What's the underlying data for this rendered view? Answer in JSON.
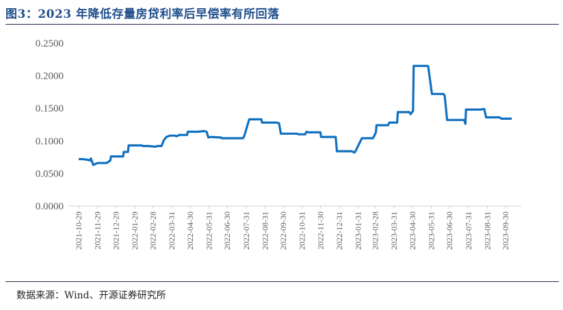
{
  "figure": {
    "title": "图3：2023 年降低存量房贷利率后早偿率有所回落",
    "source": "数据来源：Wind、开源证券研究所"
  },
  "chart_data": {
    "type": "line",
    "title": "",
    "xlabel": "",
    "ylabel": "",
    "ylim": [
      0,
      0.25
    ],
    "yticks": [
      "0.0000",
      "0.0500",
      "0.1000",
      "0.1500",
      "0.2000",
      "0.2500"
    ],
    "grid": false,
    "legend": "none",
    "line_color": "#1070c0",
    "xticks": [
      "2021-10-29",
      "2021-11-29",
      "2021-12-29",
      "2022-01-29",
      "2022-02-28",
      "2022-03-31",
      "2022-04-30",
      "2022-05-31",
      "2022-06-30",
      "2022-07-31",
      "2022-08-31",
      "2022-09-30",
      "2022-10-31",
      "2022-11-30",
      "2022-12-31",
      "2023-01-31",
      "2023-02-28",
      "2023-03-31",
      "2023-04-30",
      "2023-05-31",
      "2023-06-30",
      "2023-07-31",
      "2023-08-31",
      "2023-09-30"
    ],
    "series": [
      {
        "x": [
          "2021-10-29",
          "2021-11-05",
          "2021-11-12",
          "2021-11-17",
          "2021-11-18",
          "2021-11-22",
          "2021-11-29",
          "2021-12-08",
          "2021-12-14",
          "2021-12-20",
          "2021-12-21",
          "2021-12-28",
          "2022-01-10",
          "2022-01-11",
          "2022-01-18",
          "2022-01-19",
          "2022-02-10",
          "2022-02-11",
          "2022-02-21",
          "2022-03-04",
          "2022-03-07",
          "2022-03-14",
          "2022-03-18",
          "2022-03-22",
          "2022-03-28",
          "2022-04-05",
          "2022-04-08",
          "2022-04-12",
          "2022-04-25",
          "2022-04-26",
          "2022-05-10",
          "2022-05-13",
          "2022-05-23",
          "2022-05-27",
          "2022-05-30",
          "2022-06-03",
          "2022-06-20",
          "2022-06-21",
          "2022-07-19",
          "2022-07-26",
          "2022-07-28",
          "2022-08-05",
          "2022-08-25",
          "2022-08-26",
          "2022-09-19",
          "2022-09-23",
          "2022-09-26",
          "2022-10-19",
          "2022-10-22",
          "2022-10-25",
          "2022-11-05",
          "2022-11-07",
          "2022-11-10",
          "2022-11-30",
          "2022-12-01",
          "2022-12-25",
          "2022-12-27",
          "2023-01-20",
          "2023-01-25",
          "2023-01-27",
          "2023-02-06",
          "2023-02-24",
          "2023-02-26",
          "2023-03-01",
          "2023-03-02",
          "2023-03-21",
          "2023-03-23",
          "2023-04-05",
          "2023-04-06",
          "2023-04-25",
          "2023-04-27",
          "2023-05-01",
          "2023-05-02",
          "2023-05-25",
          "2023-05-26",
          "2023-06-01",
          "2023-06-20",
          "2023-06-22",
          "2023-06-26",
          "2023-07-24",
          "2023-07-26",
          "2023-07-27",
          "2023-08-20",
          "2023-08-26",
          "2023-08-29",
          "2023-09-20",
          "2023-09-23",
          "2023-10-10"
        ],
        "y": [
          0.072,
          0.072,
          0.071,
          0.07,
          0.073,
          0.063,
          0.066,
          0.066,
          0.066,
          0.07,
          0.076,
          0.076,
          0.076,
          0.083,
          0.083,
          0.093,
          0.093,
          0.092,
          0.092,
          0.091,
          0.092,
          0.092,
          0.101,
          0.106,
          0.108,
          0.108,
          0.107,
          0.109,
          0.109,
          0.114,
          0.114,
          0.114,
          0.115,
          0.114,
          0.105,
          0.106,
          0.105,
          0.104,
          0.104,
          0.104,
          0.108,
          0.133,
          0.133,
          0.128,
          0.128,
          0.127,
          0.111,
          0.111,
          0.111,
          0.11,
          0.11,
          0.114,
          0.113,
          0.113,
          0.106,
          0.106,
          0.084,
          0.084,
          0.082,
          0.085,
          0.104,
          0.104,
          0.107,
          0.113,
          0.124,
          0.124,
          0.128,
          0.128,
          0.144,
          0.144,
          0.141,
          0.146,
          0.215,
          0.215,
          0.214,
          0.172,
          0.172,
          0.169,
          0.132,
          0.132,
          0.126,
          0.148,
          0.148,
          0.149,
          0.136,
          0.136,
          0.134,
          0.134
        ]
      }
    ]
  }
}
